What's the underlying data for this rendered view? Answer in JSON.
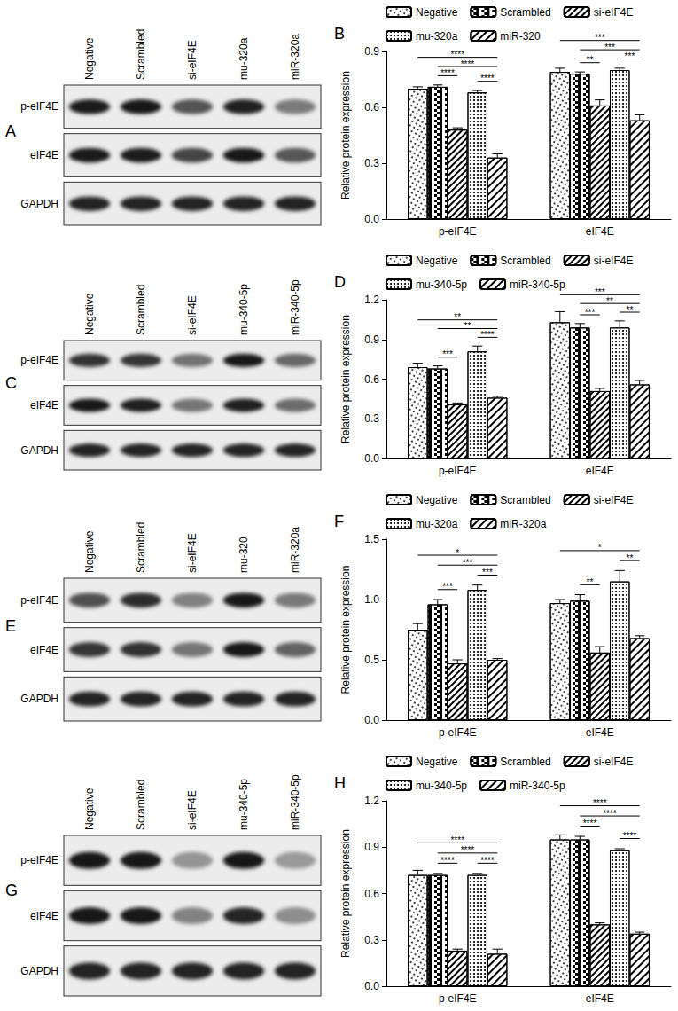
{
  "chart_data": [
    {
      "type": "bar",
      "panel": "B",
      "y_label": "Relative protein expression",
      "categories": [
        "p-eIF4E",
        "eIF4E"
      ],
      "series": [
        {
          "name": "Negative",
          "values": [
            0.7,
            0.79
          ],
          "errors": [
            0.01,
            0.02
          ]
        },
        {
          "name": "Scrambled",
          "values": [
            0.71,
            0.78
          ],
          "errors": [
            0.01,
            0.01
          ]
        },
        {
          "name": "si-eIF4E",
          "values": [
            0.48,
            0.61
          ],
          "errors": [
            0.01,
            0.03
          ]
        },
        {
          "name": "mu-320a",
          "values": [
            0.68,
            0.8
          ],
          "errors": [
            0.01,
            0.01
          ]
        },
        {
          "name": "miR-320",
          "values": [
            0.33,
            0.53
          ],
          "errors": [
            0.02,
            0.03
          ]
        }
      ],
      "ylim": [
        0,
        0.9
      ],
      "yticks": [
        {
          "value": 0,
          "label": "0.0"
        },
        0.3,
        0.6,
        0.9
      ],
      "grid": false,
      "legend": "top",
      "annotations": [
        {
          "category": "p-eIF4E",
          "from": "Scrambled",
          "to": "si-eIF4E",
          "label": "****"
        },
        {
          "category": "p-eIF4E",
          "from": "mu-320a",
          "to": "miR-320",
          "label": "****"
        },
        {
          "category": "p-eIF4E",
          "from": "Scrambled",
          "to": "miR-320",
          "label": "****"
        },
        {
          "category": "p-eIF4E",
          "from": "Negative",
          "to": "miR-320",
          "label": "****"
        },
        {
          "category": "eIF4E",
          "from": "Scrambled",
          "to": "si-eIF4E",
          "label": "**"
        },
        {
          "category": "eIF4E",
          "from": "mu-320a",
          "to": "miR-320",
          "label": "***"
        },
        {
          "category": "eIF4E",
          "from": "Scrambled",
          "to": "miR-320",
          "label": "***"
        },
        {
          "category": "eIF4E",
          "from": "Negative",
          "to": "miR-320",
          "label": "***"
        }
      ]
    },
    {
      "type": "bar",
      "panel": "D",
      "y_label": "Relative protein expression",
      "categories": [
        "p-eIF4E",
        "eIF4E"
      ],
      "series": [
        {
          "name": "Negative",
          "values": [
            0.69,
            1.03
          ],
          "errors": [
            0.03,
            0.08
          ]
        },
        {
          "name": "Scrambled",
          "values": [
            0.68,
            0.99
          ],
          "errors": [
            0.02,
            0.03
          ]
        },
        {
          "name": "si-eIF4E",
          "values": [
            0.41,
            0.51
          ],
          "errors": [
            0.01,
            0.02
          ]
        },
        {
          "name": "mu-340-5p",
          "values": [
            0.81,
            0.99
          ],
          "errors": [
            0.04,
            0.05
          ]
        },
        {
          "name": "miR-340-5p",
          "values": [
            0.46,
            0.56
          ],
          "errors": [
            0.01,
            0.03
          ]
        }
      ],
      "ylim": [
        0,
        1.2
      ],
      "yticks": [
        {
          "value": 0,
          "label": "0.0"
        },
        0.3,
        0.6,
        0.9,
        1.2
      ],
      "grid": false,
      "legend": "top",
      "annotations": [
        {
          "category": "p-eIF4E",
          "from": "Scrambled",
          "to": "si-eIF4E",
          "label": "***"
        },
        {
          "category": "p-eIF4E",
          "from": "mu-340-5p",
          "to": "miR-340-5p",
          "label": "****"
        },
        {
          "category": "p-eIF4E",
          "from": "Scrambled",
          "to": "miR-340-5p",
          "label": "**"
        },
        {
          "category": "p-eIF4E",
          "from": "Negative",
          "to": "miR-340-5p",
          "label": "**"
        },
        {
          "category": "eIF4E",
          "from": "Scrambled",
          "to": "si-eIF4E",
          "label": "***"
        },
        {
          "category": "eIF4E",
          "from": "mu-340-5p",
          "to": "miR-340-5p",
          "label": "**"
        },
        {
          "category": "eIF4E",
          "from": "Scrambled",
          "to": "miR-340-5p",
          "label": "**"
        },
        {
          "category": "eIF4E",
          "from": "Negative",
          "to": "miR-340-5p",
          "label": "***"
        }
      ]
    },
    {
      "type": "bar",
      "panel": "F",
      "y_label": "Relative protein expression",
      "categories": [
        "p-eIF4E",
        "eIF4E"
      ],
      "series": [
        {
          "name": "Negative",
          "values": [
            0.75,
            0.97
          ],
          "errors": [
            0.05,
            0.03
          ]
        },
        {
          "name": "Scrambled",
          "values": [
            0.96,
            0.99
          ],
          "errors": [
            0.04,
            0.05
          ]
        },
        {
          "name": "si-eIF4E",
          "values": [
            0.47,
            0.56
          ],
          "errors": [
            0.03,
            0.05
          ]
        },
        {
          "name": "mu-320a",
          "values": [
            1.08,
            1.15
          ],
          "errors": [
            0.04,
            0.09
          ]
        },
        {
          "name": "miR-320a",
          "values": [
            0.5,
            0.68
          ],
          "errors": [
            0.01,
            0.02
          ]
        }
      ],
      "ylim": [
        0,
        1.5
      ],
      "yticks": [
        {
          "value": 0,
          "label": "0.0"
        },
        0.5,
        {
          "value": 1,
          "label": "1.0"
        },
        1.5
      ],
      "grid": false,
      "legend": "top",
      "annotations": [
        {
          "category": "p-eIF4E",
          "from": "Scrambled",
          "to": "si-eIF4E",
          "label": "***"
        },
        {
          "category": "p-eIF4E",
          "from": "mu-320a",
          "to": "miR-320a",
          "label": "***"
        },
        {
          "category": "p-eIF4E",
          "from": "Scrambled",
          "to": "miR-320a",
          "label": "***"
        },
        {
          "category": "p-eIF4E",
          "from": "Negative",
          "to": "miR-320a",
          "label": "*"
        },
        {
          "category": "eIF4E",
          "from": "Scrambled",
          "to": "si-eIF4E",
          "label": "**"
        },
        {
          "category": "eIF4E",
          "from": "mu-320a",
          "to": "miR-320a",
          "label": "**"
        },
        {
          "category": "eIF4E",
          "from": "Negative",
          "to": "miR-320a",
          "label": "*"
        }
      ]
    },
    {
      "type": "bar",
      "panel": "H",
      "y_label": "Relative protein expression",
      "categories": [
        "p-eIF4E",
        "eIF4E"
      ],
      "series": [
        {
          "name": "Negative",
          "values": [
            0.72,
            0.95
          ],
          "errors": [
            0.03,
            0.03
          ]
        },
        {
          "name": "Scrambled",
          "values": [
            0.72,
            0.95
          ],
          "errors": [
            0.01,
            0.02
          ]
        },
        {
          "name": "si-eIF4E",
          "values": [
            0.23,
            0.4
          ],
          "errors": [
            0.01,
            0.01
          ]
        },
        {
          "name": "mu-340-5p",
          "values": [
            0.72,
            0.88
          ],
          "errors": [
            0.01,
            0.01
          ]
        },
        {
          "name": "miR-340-5p",
          "values": [
            0.21,
            0.34
          ],
          "errors": [
            0.03,
            0.01
          ]
        }
      ],
      "ylim": [
        0,
        1.2
      ],
      "yticks": [
        {
          "value": 0,
          "label": "0.0"
        },
        0.3,
        0.6,
        0.9,
        1.2
      ],
      "grid": false,
      "legend": "top",
      "annotations": [
        {
          "category": "p-eIF4E",
          "from": "Scrambled",
          "to": "si-eIF4E",
          "label": "****"
        },
        {
          "category": "p-eIF4E",
          "from": "mu-340-5p",
          "to": "miR-340-5p",
          "label": "****"
        },
        {
          "category": "p-eIF4E",
          "from": "Scrambled",
          "to": "miR-340-5p",
          "label": "****"
        },
        {
          "category": "p-eIF4E",
          "from": "Negative",
          "to": "miR-340-5p",
          "label": "****"
        },
        {
          "category": "eIF4E",
          "from": "Scrambled",
          "to": "si-eIF4E",
          "label": "****"
        },
        {
          "category": "eIF4E",
          "from": "mu-340-5p",
          "to": "miR-340-5p",
          "label": "****"
        },
        {
          "category": "eIF4E",
          "from": "Scrambled",
          "to": "miR-340-5p",
          "label": "****"
        },
        {
          "category": "eIF4E",
          "from": "Negative",
          "to": "miR-340-5p",
          "label": "****"
        }
      ]
    }
  ],
  "blots": [
    {
      "panel": "A",
      "lanes": [
        "Negative",
        "Scrambled",
        "si-eIF4E",
        "mu-320a",
        "miR-320a"
      ],
      "rows": [
        "p-eIF4E",
        "eIF4E",
        "GAPDH"
      ]
    },
    {
      "panel": "C",
      "lanes": [
        "Negative",
        "Scrambled",
        "si-eIF4E",
        "mu-340-5p",
        "miR-340-5p"
      ],
      "rows": [
        "p-eIF4E",
        "eIF4E",
        "GAPDH"
      ]
    },
    {
      "panel": "E",
      "lanes": [
        "Negative",
        "Scrambled",
        "si-eIF4E",
        "mu-320",
        "miR-320a"
      ],
      "rows": [
        "p-eIF4E",
        "eIF4E",
        "GAPDH"
      ]
    },
    {
      "panel": "G",
      "lanes": [
        "Negative",
        "Scrambled",
        "si-eIF4E",
        "mu-340-5p",
        "miR-340-5p"
      ],
      "rows": [
        "p-eIF4E",
        "eIF4E",
        "GAPDH"
      ]
    }
  ]
}
